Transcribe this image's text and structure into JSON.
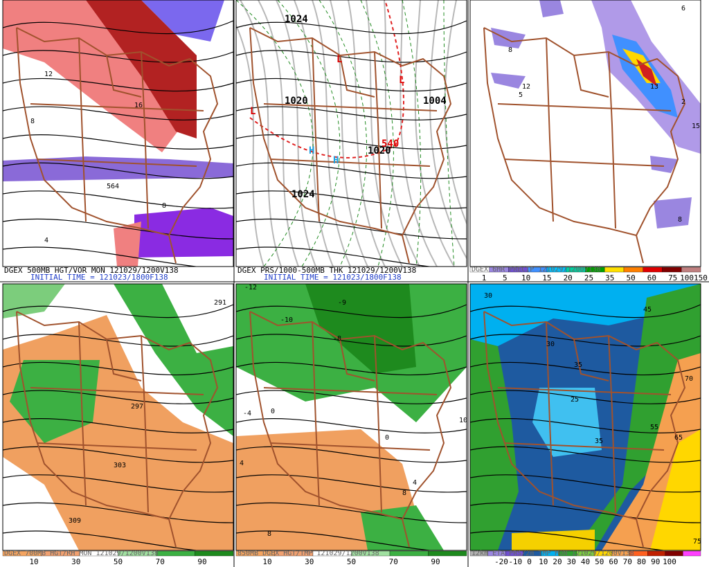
{
  "panels": [
    {
      "caption": "DGEX 500MB HGT/VOR MON 121029/1200V138",
      "initial_time": "INITIAL TIME = 121023/1800F138",
      "map_labels": [
        "564",
        "8",
        "12",
        "16",
        "8",
        "4"
      ]
    },
    {
      "caption": "DGEX PRS/1000-500MB THK 121029/1200V138",
      "initial_time": "INITIAL TIME = 121023/1800F138",
      "map_labels": [
        "1024",
        "1020",
        "1020",
        "1024",
        "1004",
        "L",
        "L",
        "L",
        "H",
        "H",
        "540"
      ]
    },
    {
      "caption": "DGEX 6HR PRECIP 121029/1200V138",
      "legend": [
        "1",
        "5",
        "10",
        "15",
        "20",
        "25",
        "35",
        "50",
        "60",
        "75",
        "100150"
      ],
      "map_labels": [
        "6",
        "8",
        "5",
        "12",
        "13",
        "2",
        "15",
        "8"
      ]
    },
    {
      "caption": "DGEX 700MB HGT/RH MON 121029/1200V138",
      "legend": [
        "10",
        "30",
        "50",
        "70",
        "90"
      ],
      "map_labels": [
        "297",
        "303",
        "309",
        "291"
      ]
    },
    {
      "caption": "850MB DGEX HGT/TMP 121029/1200V138",
      "legend": [
        "10",
        "30",
        "50",
        "70",
        "90"
      ],
      "map_labels": [
        "-12",
        "-10",
        "-9",
        "-8",
        "-4",
        "0",
        "4",
        "8",
        "10",
        "4",
        "0",
        "8"
      ]
    },
    {
      "caption": "12km ETA PRS/2m TMP MON 121029/1200V138",
      "legend": [
        "-20",
        "-10",
        "0",
        "10",
        "20",
        "30",
        "40",
        "50",
        "60",
        "70",
        "80",
        "90",
        "100"
      ],
      "map_labels": [
        "30",
        "25",
        "35",
        "45",
        "55",
        "65",
        "70",
        "75",
        "30",
        "35"
      ]
    }
  ]
}
